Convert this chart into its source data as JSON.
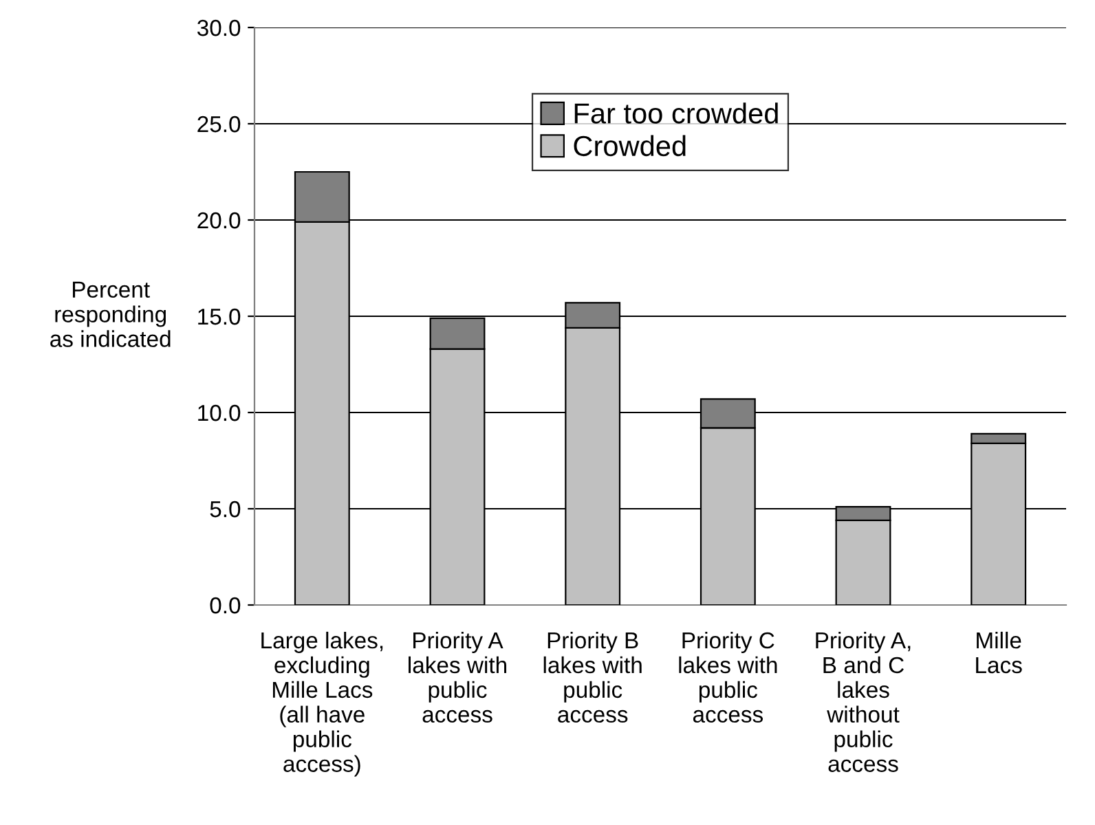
{
  "chart_data": {
    "type": "bar",
    "stacked": true,
    "ylabel": "Percent\nresponding\nas indicated",
    "categories": [
      "Large lakes,\nexcluding\nMille Lacs\n(all have\npublic\naccess)",
      "Priority A\nlakes with\npublic\naccess",
      "Priority B\nlakes with\npublic\naccess",
      "Priority C\nlakes with\npublic\naccess",
      "Priority A,\nB and C\nlakes\nwithout\npublic\naccess",
      "Mille\nLacs"
    ],
    "series": [
      {
        "name": "Crowded",
        "color": "#c0c0c0",
        "values": [
          19.9,
          13.3,
          14.4,
          9.2,
          4.4,
          8.4
        ]
      },
      {
        "name": "Far too crowded",
        "color": "#808080",
        "values": [
          2.6,
          1.6,
          1.3,
          1.5,
          0.7,
          0.5
        ]
      }
    ],
    "ylim": [
      0,
      30
    ],
    "yticks": [
      {
        "value": 0,
        "label": "0.0"
      },
      {
        "value": 5,
        "label": "5.0"
      },
      {
        "value": 10,
        "label": "10.0"
      },
      {
        "value": 15,
        "label": "15.0"
      },
      {
        "value": 20,
        "label": "20.0"
      },
      {
        "value": 25,
        "label": "25.0"
      },
      {
        "value": 30,
        "label": "30.0"
      }
    ],
    "grid": "y",
    "legend": "top"
  }
}
